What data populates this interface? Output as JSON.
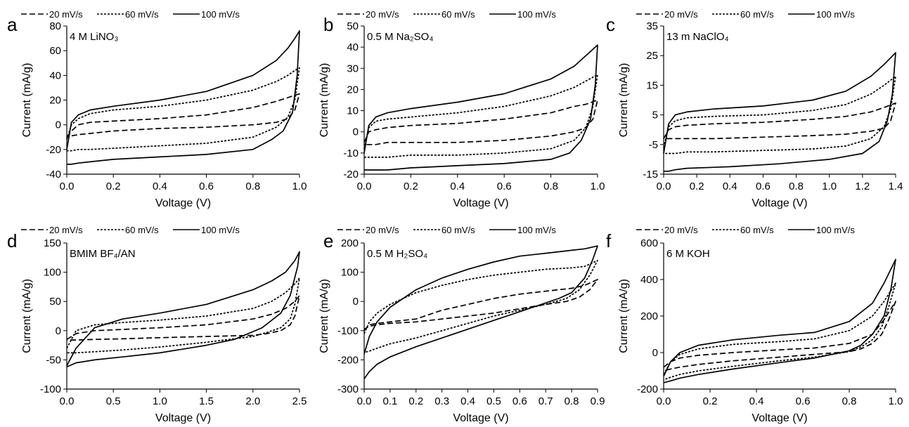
{
  "legend": {
    "entries": [
      {
        "label": "20 mV/s",
        "dash": "8,4"
      },
      {
        "label": "60 mV/s",
        "dash": "3,2"
      },
      {
        "label": "100 mV/s",
        "dash": ""
      }
    ]
  },
  "chart_data": [
    {
      "type": "line",
      "letter": "a",
      "label": "4 M LiNO₃",
      "xlabel": "Voltage (V)",
      "ylabel": "Current (mA/g)",
      "xlim": [
        0,
        1.0
      ],
      "ylim": [
        -40,
        80
      ],
      "xticks": [
        "0.0",
        "0.2",
        "0.4",
        "0.6",
        "0.8",
        "1.0"
      ],
      "yticks": [
        "-40",
        "-20",
        "0",
        "20",
        "40",
        "60",
        "80"
      ],
      "series": [
        {
          "name": "20 mV/s",
          "x": [
            0.0,
            0.02,
            0.05,
            0.1,
            0.2,
            0.4,
            0.6,
            0.8,
            0.9,
            0.95,
            0.98,
            1.0,
            0.98,
            0.95,
            0.9,
            0.8,
            0.6,
            0.4,
            0.2,
            0.1,
            0.05,
            0.02,
            0.0
          ],
          "y": [
            -10,
            -5,
            0,
            2,
            3,
            5,
            8,
            14,
            19,
            22,
            24,
            25,
            12,
            5,
            2,
            0,
            -2,
            -3,
            -5,
            -7,
            -8,
            -9,
            -10
          ]
        },
        {
          "name": "60 mV/s",
          "x": [
            0.0,
            0.02,
            0.05,
            0.1,
            0.2,
            0.4,
            0.6,
            0.8,
            0.9,
            0.95,
            0.98,
            1.0,
            0.98,
            0.95,
            0.9,
            0.8,
            0.6,
            0.4,
            0.2,
            0.1,
            0.05,
            0.02,
            0.0
          ],
          "y": [
            -12,
            0,
            5,
            9,
            12,
            15,
            20,
            28,
            35,
            40,
            44,
            46,
            20,
            6,
            -2,
            -10,
            -15,
            -17,
            -19,
            -20,
            -20,
            -21,
            -21
          ]
        },
        {
          "name": "100 mV/s",
          "x": [
            0.0,
            0.02,
            0.05,
            0.1,
            0.2,
            0.4,
            0.6,
            0.8,
            0.9,
            0.95,
            0.98,
            1.0,
            0.99,
            0.97,
            0.93,
            0.88,
            0.8,
            0.6,
            0.4,
            0.2,
            0.1,
            0.05,
            0.02,
            0.0
          ],
          "y": [
            -20,
            2,
            8,
            12,
            15,
            20,
            27,
            40,
            52,
            62,
            70,
            76,
            40,
            10,
            -5,
            -12,
            -20,
            -24,
            -26,
            -28,
            -30,
            -31,
            -32,
            -32
          ]
        }
      ]
    },
    {
      "type": "line",
      "letter": "b",
      "label": "0.5 M Na₂SO₄",
      "xlabel": "Voltage (V)",
      "ylabel": "Current (mA/g)",
      "xlim": [
        0,
        1.0
      ],
      "ylim": [
        -20,
        50
      ],
      "xticks": [
        "0.0",
        "0.2",
        "0.4",
        "0.6",
        "0.8",
        "1.0"
      ],
      "yticks": [
        "-20",
        "-10",
        "0",
        "10",
        "20",
        "30",
        "40",
        "50"
      ],
      "series": [
        {
          "name": "20 mV/s",
          "x": [
            0.0,
            0.02,
            0.05,
            0.1,
            0.2,
            0.4,
            0.6,
            0.8,
            0.9,
            0.95,
            1.0,
            0.98,
            0.95,
            0.9,
            0.8,
            0.6,
            0.4,
            0.2,
            0.1,
            0.05,
            0.02,
            0.0
          ],
          "y": [
            -5,
            0,
            1,
            2,
            3,
            4,
            6,
            9,
            12,
            13,
            15,
            6,
            2,
            0,
            -2,
            -4,
            -5,
            -5,
            -5,
            -6,
            -6,
            -6
          ]
        },
        {
          "name": "60 mV/s",
          "x": [
            0.0,
            0.02,
            0.05,
            0.1,
            0.2,
            0.4,
            0.6,
            0.8,
            0.9,
            0.95,
            1.0,
            0.98,
            0.95,
            0.9,
            0.8,
            0.6,
            0.4,
            0.2,
            0.1,
            0.05,
            0.02,
            0.0
          ],
          "y": [
            -8,
            2,
            5,
            6,
            7,
            9,
            12,
            17,
            21,
            24,
            27,
            12,
            2,
            -4,
            -8,
            -10,
            -11,
            -11,
            -12,
            -12,
            -12,
            -12
          ]
        },
        {
          "name": "100 mV/s",
          "x": [
            0.0,
            0.02,
            0.05,
            0.1,
            0.2,
            0.4,
            0.6,
            0.8,
            0.9,
            0.95,
            1.0,
            0.99,
            0.97,
            0.93,
            0.88,
            0.8,
            0.6,
            0.4,
            0.2,
            0.1,
            0.05,
            0.02,
            0.0
          ],
          "y": [
            -10,
            3,
            7,
            9,
            11,
            14,
            18,
            25,
            31,
            36,
            41,
            22,
            6,
            -4,
            -10,
            -13,
            -15,
            -16,
            -17,
            -18,
            -18,
            -18,
            -18
          ]
        }
      ]
    },
    {
      "type": "line",
      "letter": "c",
      "label": "13 m NaClO₄",
      "xlabel": "Voltage (V)",
      "ylabel": "Current (mA/g)",
      "xlim": [
        0,
        1.4
      ],
      "ylim": [
        -15,
        35
      ],
      "xticks": [
        "0.0",
        "0.2",
        "0.4",
        "0.6",
        "0.8",
        "1.0",
        "1.2",
        "1.4"
      ],
      "yticks": [
        "-15",
        "-5",
        "5",
        "15",
        "25",
        "35"
      ],
      "series": [
        {
          "name": "20 mV/s",
          "x": [
            0.0,
            0.03,
            0.07,
            0.14,
            0.3,
            0.6,
            0.9,
            1.1,
            1.25,
            1.33,
            1.4,
            1.37,
            1.33,
            1.25,
            1.1,
            0.9,
            0.6,
            0.3,
            0.14,
            0.07,
            0.03,
            0.0
          ],
          "y": [
            -3,
            0,
            1,
            1.5,
            2,
            2.5,
            3.5,
            4.5,
            6,
            7.5,
            9,
            3,
            0.5,
            -0.5,
            -1.5,
            -2,
            -2.5,
            -3,
            -3,
            -3,
            -3,
            -3
          ]
        },
        {
          "name": "60 mV/s",
          "x": [
            0.0,
            0.03,
            0.07,
            0.14,
            0.3,
            0.6,
            0.9,
            1.1,
            1.25,
            1.33,
            1.4,
            1.37,
            1.33,
            1.25,
            1.1,
            0.9,
            0.6,
            0.3,
            0.14,
            0.07,
            0.03,
            0.0
          ],
          "y": [
            -6,
            1,
            3,
            4,
            4.5,
            5,
            6.5,
            8.5,
            12,
            15,
            18,
            7,
            1,
            -3,
            -5.5,
            -6.5,
            -7,
            -7.5,
            -7.5,
            -8,
            -8,
            -8
          ]
        },
        {
          "name": "100 mV/s",
          "x": [
            0.0,
            0.03,
            0.07,
            0.14,
            0.3,
            0.6,
            0.9,
            1.1,
            1.25,
            1.33,
            1.4,
            1.38,
            1.35,
            1.3,
            1.2,
            1.0,
            0.7,
            0.4,
            0.14,
            0.07,
            0.03,
            0.0
          ],
          "y": [
            -8,
            2,
            5,
            6,
            7,
            8,
            10,
            13,
            18,
            22,
            26,
            12,
            3,
            -4,
            -8,
            -10,
            -11.5,
            -12.5,
            -13,
            -13.5,
            -14,
            -14
          ]
        }
      ]
    },
    {
      "type": "line",
      "letter": "d",
      "label": "BMIM BF₄/AN",
      "xlabel": "Voltage (V)",
      "ylabel": "Current (mA/g)",
      "xlim": [
        0,
        2.5
      ],
      "ylim": [
        -100,
        150
      ],
      "xticks": [
        "0.0",
        "0.5",
        "1.0",
        "1.5",
        "2.0",
        "2.5"
      ],
      "yticks": [
        "-100",
        "-50",
        "0",
        "50",
        "100",
        "150"
      ],
      "series": [
        {
          "name": "20 mV/s",
          "x": [
            0.0,
            0.1,
            0.3,
            0.6,
            1.0,
            1.5,
            2.0,
            2.2,
            2.35,
            2.45,
            2.5,
            2.45,
            2.4,
            2.3,
            2.15,
            2.0,
            1.5,
            1.0,
            0.6,
            0.3,
            0.1,
            0.0
          ],
          "y": [
            -15,
            -5,
            0,
            2,
            5,
            10,
            20,
            28,
            38,
            50,
            60,
            25,
            10,
            0,
            -5,
            -8,
            -10,
            -12,
            -14,
            -15,
            -16,
            -16
          ]
        },
        {
          "name": "60 mV/s",
          "x": [
            0.0,
            0.1,
            0.3,
            0.6,
            1.0,
            1.5,
            2.0,
            2.2,
            2.35,
            2.45,
            2.5,
            2.45,
            2.4,
            2.3,
            2.15,
            2.0,
            1.5,
            1.0,
            0.6,
            0.3,
            0.1,
            0.0
          ],
          "y": [
            -30,
            0,
            10,
            14,
            18,
            25,
            38,
            50,
            65,
            80,
            90,
            45,
            20,
            5,
            -3,
            -10,
            -20,
            -28,
            -33,
            -36,
            -38,
            -38
          ]
        },
        {
          "name": "100 mV/s",
          "x": [
            0.0,
            0.1,
            0.3,
            0.6,
            1.0,
            1.5,
            2.0,
            2.2,
            2.35,
            2.45,
            2.5,
            2.48,
            2.4,
            2.3,
            2.1,
            1.8,
            1.5,
            1.0,
            0.6,
            0.3,
            0.1,
            0.0
          ],
          "y": [
            -60,
            -30,
            5,
            20,
            30,
            45,
            70,
            85,
            100,
            120,
            135,
            110,
            60,
            30,
            5,
            -15,
            -25,
            -38,
            -45,
            -50,
            -55,
            -62
          ]
        }
      ]
    },
    {
      "type": "line",
      "letter": "e",
      "label": "0.5 M H₂SO₄",
      "xlabel": "Voltage (V)",
      "ylabel": "Current (mA/g)",
      "xlim": [
        0,
        0.9
      ],
      "ylim": [
        -300,
        200
      ],
      "xticks": [
        "0.0",
        "0.1",
        "0.2",
        "0.3",
        "0.4",
        "0.5",
        "0.6",
        "0.7",
        "0.8",
        "0.9"
      ],
      "yticks": [
        "-300",
        "-200",
        "-100",
        "0",
        "100",
        "200"
      ],
      "series": [
        {
          "name": "20 mV/s",
          "x": [
            0.0,
            0.02,
            0.05,
            0.1,
            0.2,
            0.3,
            0.4,
            0.5,
            0.6,
            0.7,
            0.8,
            0.85,
            0.9,
            0.87,
            0.83,
            0.78,
            0.7,
            0.6,
            0.5,
            0.4,
            0.3,
            0.2,
            0.1,
            0.05,
            0.02,
            0.0
          ],
          "y": [
            -100,
            -80,
            -75,
            -70,
            -60,
            -30,
            -10,
            10,
            25,
            35,
            45,
            55,
            75,
            40,
            15,
            0,
            -10,
            -25,
            -40,
            -50,
            -60,
            -70,
            -75,
            -80,
            -85,
            -95
          ]
        },
        {
          "name": "60 mV/s",
          "x": [
            0.0,
            0.02,
            0.05,
            0.1,
            0.2,
            0.3,
            0.4,
            0.5,
            0.6,
            0.7,
            0.8,
            0.85,
            0.9,
            0.87,
            0.83,
            0.78,
            0.7,
            0.6,
            0.5,
            0.4,
            0.3,
            0.2,
            0.1,
            0.05,
            0.02,
            0.0
          ],
          "y": [
            -110,
            -70,
            -40,
            -10,
            30,
            55,
            75,
            90,
            100,
            110,
            115,
            120,
            140,
            90,
            40,
            10,
            -10,
            -30,
            -50,
            -75,
            -100,
            -125,
            -145,
            -160,
            -170,
            -175
          ]
        },
        {
          "name": "100 mV/s",
          "x": [
            0.0,
            0.02,
            0.05,
            0.1,
            0.2,
            0.3,
            0.4,
            0.5,
            0.6,
            0.7,
            0.8,
            0.85,
            0.9,
            0.88,
            0.85,
            0.8,
            0.75,
            0.7,
            0.6,
            0.5,
            0.4,
            0.3,
            0.2,
            0.1,
            0.05,
            0.02,
            0.0
          ],
          "y": [
            -180,
            -120,
            -70,
            -20,
            40,
            80,
            110,
            135,
            155,
            165,
            175,
            180,
            190,
            140,
            80,
            30,
            10,
            -5,
            -35,
            -65,
            -95,
            -125,
            -155,
            -190,
            -215,
            -240,
            -265
          ]
        }
      ]
    },
    {
      "type": "line",
      "letter": "f",
      "label": "6 M KOH",
      "xlabel": "Voltage (V)",
      "ylabel": "Current (mA/g)",
      "xlim": [
        0,
        1.0
      ],
      "ylim": [
        -200,
        600
      ],
      "xticks": [
        "0.0",
        "0.2",
        "0.4",
        "0.6",
        "0.8",
        "1.0"
      ],
      "yticks": [
        "-200",
        "0",
        "200",
        "400",
        "600"
      ],
      "series": [
        {
          "name": "20 mV/s",
          "x": [
            0.0,
            0.03,
            0.07,
            0.15,
            0.3,
            0.5,
            0.65,
            0.8,
            0.9,
            0.95,
            1.0,
            0.97,
            0.94,
            0.9,
            0.85,
            0.8,
            0.65,
            0.5,
            0.3,
            0.15,
            0.07,
            0.03,
            0.0
          ],
          "y": [
            -80,
            -50,
            -30,
            -15,
            0,
            15,
            25,
            50,
            100,
            180,
            280,
            180,
            100,
            50,
            20,
            5,
            -10,
            -25,
            -45,
            -65,
            -80,
            -90,
            -100
          ]
        },
        {
          "name": "60 mV/s",
          "x": [
            0.0,
            0.03,
            0.07,
            0.15,
            0.3,
            0.5,
            0.65,
            0.8,
            0.9,
            0.95,
            1.0,
            0.97,
            0.94,
            0.9,
            0.85,
            0.8,
            0.65,
            0.5,
            0.3,
            0.15,
            0.07,
            0.03,
            0.0
          ],
          "y": [
            -120,
            -50,
            -10,
            20,
            45,
            60,
            75,
            120,
            200,
            280,
            380,
            250,
            140,
            70,
            30,
            5,
            -25,
            -45,
            -75,
            -100,
            -120,
            -135,
            -150
          ]
        },
        {
          "name": "100 mV/s",
          "x": [
            0.0,
            0.03,
            0.07,
            0.15,
            0.3,
            0.5,
            0.65,
            0.8,
            0.9,
            0.95,
            1.0,
            0.98,
            0.95,
            0.9,
            0.85,
            0.8,
            0.65,
            0.5,
            0.3,
            0.15,
            0.07,
            0.03,
            0.0
          ],
          "y": [
            -130,
            -50,
            0,
            40,
            70,
            95,
            110,
            170,
            270,
            380,
            510,
            350,
            200,
            100,
            40,
            10,
            -30,
            -55,
            -90,
            -120,
            -140,
            -155,
            -165
          ]
        }
      ]
    }
  ]
}
